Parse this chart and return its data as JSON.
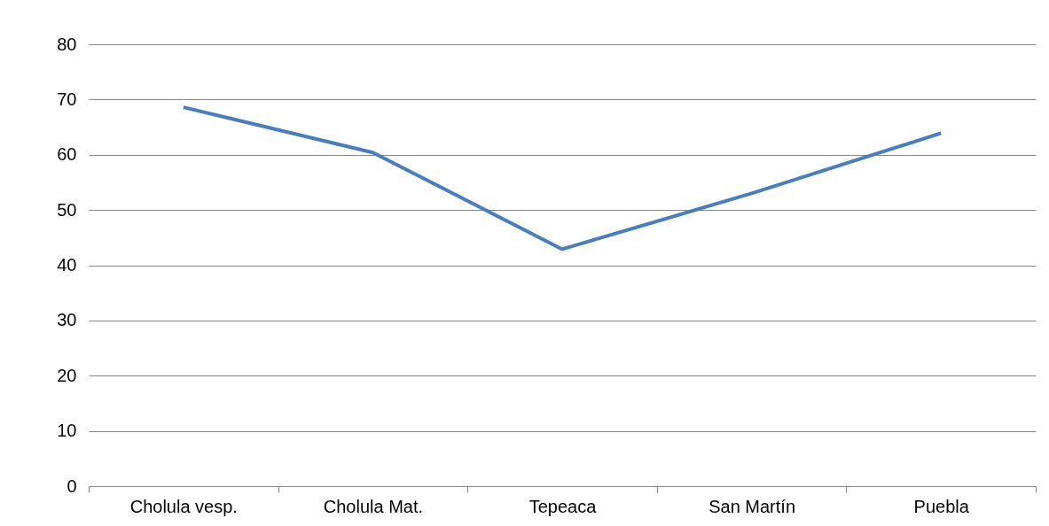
{
  "chart_data": {
    "type": "line",
    "categories": [
      "Cholula vesp.",
      "Cholula Mat.",
      "Tepeaca",
      "San Martín",
      "Puebla"
    ],
    "series": [
      {
        "color": "#4a7ebb",
        "values": [
          68.6,
          60.4,
          42.9,
          53.0,
          63.9
        ]
      }
    ],
    "ylim": [
      0,
      80
    ],
    "yticks": [
      0,
      10,
      20,
      30,
      40,
      50,
      60,
      70,
      80
    ],
    "grid": "y",
    "legend": false,
    "marker": "none",
    "line_style": "solid"
  }
}
